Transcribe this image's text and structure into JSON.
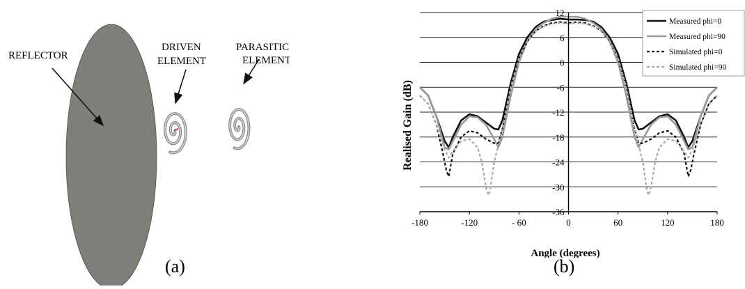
{
  "panel_a": {
    "labels": {
      "reflector": "REFLECTOR",
      "driven_line1": "DRIVEN",
      "driven_line2": "ELEMENT",
      "parasitic_line1": "PARASITIC",
      "parasitic_line2": "ELEMENT"
    },
    "caption": "(a)",
    "colors": {
      "reflector_fill": "#7f7f7a",
      "element_stroke": "#8a8a8a",
      "feed": "#c83a3a"
    }
  },
  "panel_b": {
    "caption": "(b)"
  },
  "chart_data": {
    "type": "line",
    "title": "",
    "xlabel": "Angle (degrees)",
    "ylabel": "Realised Gain (dB)",
    "xlim": [
      -180,
      180
    ],
    "ylim": [
      -36,
      12
    ],
    "xticks": [
      -180,
      -120,
      -60,
      0,
      60,
      120,
      180
    ],
    "yticks": [
      12,
      6,
      0,
      -6,
      -12,
      -18,
      -24,
      -30,
      -36
    ],
    "xtick_labels": [
      "-180",
      "-120",
      "- 60",
      "0",
      "60",
      "120",
      "180"
    ],
    "ytick_labels": [
      "12",
      "6",
      "0",
      "-6",
      "-12",
      "-18",
      "-24",
      "-30",
      "-36"
    ],
    "grid": "horizontal",
    "legend_position": "top-right",
    "series": [
      {
        "name": "Measured phi=0",
        "color": "#111111",
        "dash": "solid",
        "width": 2.6,
        "x": [
          -180,
          -170,
          -160,
          -150,
          -145,
          -140,
          -130,
          -120,
          -110,
          -100,
          -90,
          -85,
          -80,
          -70,
          -60,
          -50,
          -40,
          -30,
          -20,
          -10,
          0,
          10,
          20,
          30,
          40,
          50,
          60,
          70,
          80,
          85,
          90,
          100,
          110,
          120,
          130,
          140,
          145,
          150,
          160,
          170,
          180
        ],
        "y": [
          -6,
          -8,
          -13,
          -19,
          -20.5,
          -18,
          -14,
          -12.5,
          -13,
          -14.5,
          -16,
          -16.2,
          -14,
          -5,
          2,
          6,
          8.5,
          9.8,
          10.2,
          10.5,
          10.3,
          10.3,
          10.2,
          9.8,
          8.5,
          6,
          2,
          -5,
          -14,
          -16.2,
          -16,
          -14.5,
          -13,
          -12.5,
          -14,
          -18,
          -20.5,
          -19,
          -13,
          -8,
          -6
        ]
      },
      {
        "name": "Measured phi=90",
        "color": "#9a9a9a",
        "dash": "solid",
        "width": 2.6,
        "x": [
          -180,
          -170,
          -160,
          -150,
          -145,
          -140,
          -130,
          -120,
          -110,
          -100,
          -90,
          -85,
          -80,
          -70,
          -60,
          -50,
          -40,
          -30,
          -20,
          -10,
          0,
          10,
          20,
          30,
          40,
          50,
          60,
          70,
          80,
          85,
          90,
          100,
          110,
          120,
          130,
          140,
          145,
          150,
          160,
          170,
          180
        ],
        "y": [
          -6,
          -8,
          -13,
          -20.5,
          -21,
          -19,
          -15,
          -13,
          -13.3,
          -15,
          -18.5,
          -20.5,
          -18,
          -8,
          0,
          5,
          8,
          9.5,
          10.5,
          11,
          11,
          11,
          10.5,
          9.5,
          8,
          5,
          0,
          -8,
          -18,
          -20.5,
          -18.5,
          -15,
          -13.3,
          -13,
          -15,
          -19,
          -21,
          -20.5,
          -13,
          -8,
          -6
        ]
      },
      {
        "name": "Simulated phi=0",
        "color": "#111111",
        "dash": "4,3",
        "width": 2.2,
        "x": [
          -180,
          -170,
          -160,
          -152,
          -148,
          -145,
          -140,
          -130,
          -120,
          -110,
          -100,
          -90,
          -85,
          -80,
          -70,
          -60,
          -50,
          -40,
          -30,
          -20,
          -10,
          0,
          10,
          20,
          30,
          40,
          50,
          60,
          70,
          80,
          85,
          90,
          100,
          110,
          120,
          130,
          140,
          145,
          148,
          152,
          160,
          170,
          180
        ],
        "y": [
          -8,
          -10,
          -15,
          -22,
          -26,
          -27.5,
          -22,
          -18,
          -16.5,
          -17,
          -18.5,
          -19.5,
          -19.5,
          -16,
          -6,
          1,
          5,
          7.5,
          8.8,
          9.5,
          9.7,
          9.5,
          9.7,
          9.5,
          8.8,
          7.5,
          5,
          1,
          -6,
          -16,
          -19.5,
          -19.5,
          -18.5,
          -17,
          -16.5,
          -18,
          -22,
          -27.5,
          -26,
          -22,
          -15,
          -10,
          -8
        ]
      },
      {
        "name": "Simulated phi=90",
        "color": "#a8a8a8",
        "dash": "4,3",
        "width": 2.2,
        "x": [
          -180,
          -170,
          -160,
          -150,
          -145,
          -140,
          -130,
          -120,
          -110,
          -105,
          -100,
          -97,
          -95,
          -90,
          -85,
          -80,
          -70,
          -60,
          -50,
          -40,
          -30,
          -20,
          -10,
          0,
          10,
          20,
          30,
          40,
          50,
          60,
          70,
          80,
          85,
          90,
          95,
          97,
          100,
          105,
          110,
          120,
          130,
          140,
          145,
          150,
          160,
          170,
          180
        ],
        "y": [
          -8,
          -10,
          -15,
          -21,
          -23,
          -21.5,
          -19,
          -18.5,
          -20.5,
          -24,
          -30,
          -32,
          -31,
          -24,
          -20,
          -16,
          -6,
          1,
          5,
          7.5,
          8.7,
          9.3,
          9.5,
          9.3,
          9.5,
          9.3,
          8.7,
          7.5,
          5,
          1,
          -6,
          -16,
          -20,
          -24,
          -31,
          -32,
          -30,
          -24,
          -20.5,
          -18.5,
          -19,
          -21.5,
          -23,
          -21,
          -15,
          -10,
          -8
        ]
      }
    ]
  }
}
